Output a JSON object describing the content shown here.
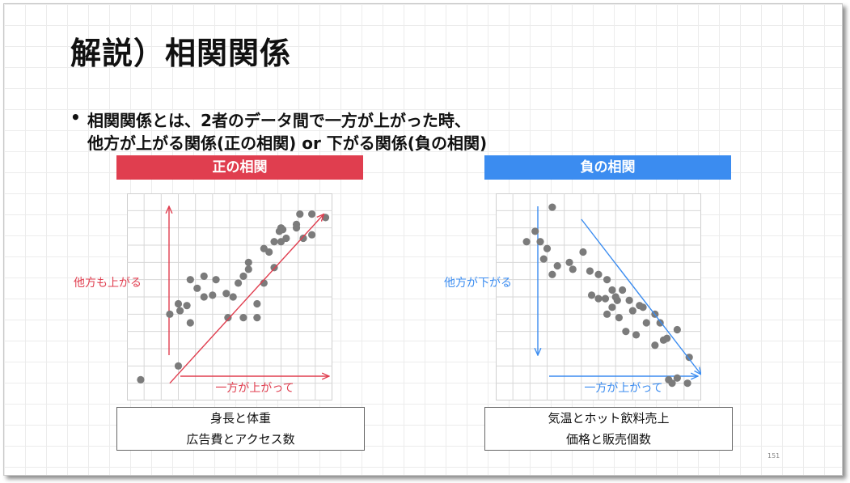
{
  "title": "解説）相関関係",
  "bullet": {
    "marker": "•",
    "line1": "相関関係とは、2者のデータ間で一方が上がった時、",
    "line2": "他方が上がる関係(正の相関) or 下がる関係(負の相関)"
  },
  "page_number": "151",
  "colors": {
    "positive": "#e03e4f",
    "negative": "#3b8cf0",
    "dot": "#7b7b7b"
  },
  "chart_data": [
    {
      "type": "scatter",
      "title": "正の相関",
      "y_axis_label": "他方も上がる",
      "x_axis_label": "一方が上がって",
      "xlim": [
        0,
        12
      ],
      "ylim": [
        0,
        12
      ],
      "examples": [
        "身長と体重",
        "広告費とアクセス数"
      ],
      "points": [
        [
          0.8,
          1.2
        ],
        [
          4.5,
          7.2
        ],
        [
          4.1,
          6.5
        ],
        [
          5.8,
          6.2
        ],
        [
          6.5,
          6.8
        ],
        [
          8.0,
          6.8
        ],
        [
          7.1,
          7.6
        ],
        [
          7.1,
          8.0
        ],
        [
          8.0,
          8.8
        ],
        [
          8.6,
          9.2
        ],
        [
          9.0,
          10.0
        ],
        [
          9.9,
          10.0
        ],
        [
          8.9,
          9.8
        ],
        [
          9.3,
          9.4
        ],
        [
          10.3,
          9.4
        ],
        [
          10.8,
          9.6
        ],
        [
          11.6,
          10.6
        ],
        [
          10.1,
          10.8
        ],
        [
          10.8,
          10.8
        ],
        [
          9.9,
          10.2
        ],
        [
          9.0,
          9.2
        ],
        [
          5.0,
          6.1
        ],
        [
          4.5,
          6.0
        ],
        [
          3.7,
          7.0
        ],
        [
          3.7,
          4.5
        ],
        [
          2.5,
          5.0
        ],
        [
          3.1,
          5.2
        ],
        [
          3.5,
          5.5
        ],
        [
          3.0,
          5.6
        ],
        [
          3.0,
          2.0
        ],
        [
          5.9,
          4.8
        ],
        [
          5.2,
          7.0
        ],
        [
          6.2,
          6.0
        ],
        [
          7.6,
          5.6
        ],
        [
          8.6,
          7.7
        ],
        [
          6.8,
          7.2
        ],
        [
          8.3,
          8.6
        ],
        [
          9.1,
          9.9
        ],
        [
          7.6,
          4.8
        ],
        [
          6.8,
          4.8
        ]
      ],
      "trend": {
        "from": [
          2.5,
          1.0
        ],
        "to": [
          11.5,
          10.8
        ]
      }
    },
    {
      "type": "scatter",
      "title": "負の相関",
      "y_axis_label": "他方が下がる",
      "x_axis_label": "一方が上がって",
      "xlim": [
        0,
        12
      ],
      "ylim": [
        0,
        12
      ],
      "examples": [
        "気温とホット飲料売上",
        "価格と販売個数"
      ],
      "points": [
        [
          3.3,
          11.2
        ],
        [
          2.3,
          9.8
        ],
        [
          1.8,
          9.2
        ],
        [
          2.6,
          9.2
        ],
        [
          3.0,
          8.8
        ],
        [
          2.8,
          8.2
        ],
        [
          4.3,
          8.0
        ],
        [
          5.1,
          8.6
        ],
        [
          4.5,
          7.6
        ],
        [
          3.3,
          7.3
        ],
        [
          3.6,
          7.8
        ],
        [
          5.5,
          7.5
        ],
        [
          6.0,
          7.3
        ],
        [
          6.5,
          7.0
        ],
        [
          6.8,
          6.4
        ],
        [
          7.4,
          6.4
        ],
        [
          7.8,
          5.8
        ],
        [
          8.0,
          5.2
        ],
        [
          8.6,
          5.4
        ],
        [
          9.6,
          4.5
        ],
        [
          10.6,
          4.1
        ],
        [
          11.3,
          2.5
        ],
        [
          9.3,
          5.0
        ],
        [
          9.3,
          3.2
        ],
        [
          10.0,
          3.6
        ],
        [
          8.2,
          3.8
        ],
        [
          8.8,
          4.5
        ],
        [
          9.8,
          3.5
        ],
        [
          7.6,
          4.0
        ],
        [
          7.2,
          4.8
        ],
        [
          6.8,
          5.4
        ],
        [
          6.0,
          5.9
        ],
        [
          7.0,
          6.0
        ],
        [
          6.5,
          5.0
        ],
        [
          5.6,
          6.1
        ],
        [
          6.4,
          5.9
        ],
        [
          7.1,
          5.8
        ],
        [
          10.3,
          1.0
        ],
        [
          10.6,
          1.3
        ],
        [
          11.2,
          1.0
        ],
        [
          10.1,
          1.2
        ],
        [
          8.4,
          5.5
        ]
      ],
      "trend": {
        "from": [
          5.0,
          10.5
        ],
        "to": [
          12.0,
          1.5
        ]
      }
    }
  ]
}
